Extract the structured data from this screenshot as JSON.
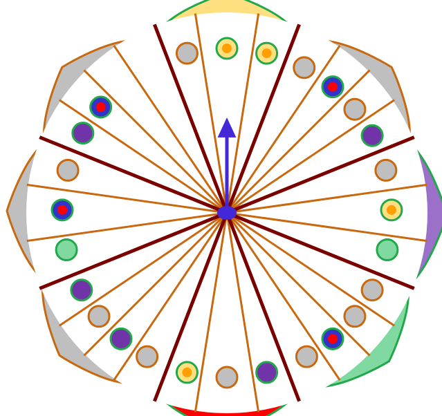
{
  "colors": {
    "background": "#ffffff",
    "rim_stroke": "#c8680f",
    "thin_spoke": "#c8680f",
    "thick_spoke": "#7a0000",
    "pointer": "#4427d6",
    "ring": "#22a84a",
    "grey_fill": "#bfbfbf",
    "green_fill": "#7fd9a0",
    "purple": "#7033a8",
    "red": "#ff0000",
    "yellow": "#ffdf80",
    "orange": "#ffa000",
    "blue": "#3333cc",
    "lavender": "#9a70c8"
  },
  "pointer": {
    "direction_degrees": 0,
    "icon": "arrow-up-icon"
  },
  "arcs": [
    {
      "id": "arc-top",
      "fill": "yellow",
      "outline": "ring"
    },
    {
      "id": "arc-upper-right",
      "fill": "grey",
      "outline": "rim"
    },
    {
      "id": "arc-right",
      "fill": "lavender",
      "outline": "ring"
    },
    {
      "id": "arc-lower-right",
      "fill": "green",
      "outline": "ring"
    },
    {
      "id": "arc-bottom",
      "fill": "red",
      "outline": "ring"
    },
    {
      "id": "arc-lower-left",
      "fill": "grey",
      "outline": "rim"
    },
    {
      "id": "arc-left",
      "fill": "grey",
      "outline": "rim"
    },
    {
      "id": "arc-upper-left",
      "fill": "grey",
      "outline": "rim"
    }
  ],
  "tokens": [
    {
      "id": "t1",
      "base": "ring",
      "fill": "yellow",
      "inner": "orange"
    },
    {
      "id": "t2",
      "base": "ring",
      "fill": "yellow",
      "inner": "orange"
    },
    {
      "id": "t3",
      "base": "rim",
      "fill": "grey",
      "inner": null
    },
    {
      "id": "t4",
      "base": "rim",
      "fill": "grey",
      "inner": null
    },
    {
      "id": "t5",
      "base": "ring",
      "fill": "blue",
      "inner": "red"
    },
    {
      "id": "t6",
      "base": "rim",
      "fill": "grey",
      "inner": null
    },
    {
      "id": "t7",
      "base": "ring",
      "fill": "purple",
      "inner": null
    },
    {
      "id": "t8",
      "base": "rim",
      "fill": "grey",
      "inner": null
    },
    {
      "id": "t9",
      "base": "ring",
      "fill": "yellow",
      "inner": "orange"
    },
    {
      "id": "t10",
      "base": "ring",
      "fill": "green",
      "inner": null
    },
    {
      "id": "t11",
      "base": "rim",
      "fill": "grey",
      "inner": null
    },
    {
      "id": "t12",
      "base": "rim",
      "fill": "grey",
      "inner": null
    },
    {
      "id": "t13",
      "base": "ring",
      "fill": "blue",
      "inner": "red"
    },
    {
      "id": "t14",
      "base": "rim",
      "fill": "grey",
      "inner": null
    },
    {
      "id": "t15",
      "base": "ring",
      "fill": "purple",
      "inner": null
    },
    {
      "id": "t16",
      "base": "rim",
      "fill": "grey",
      "inner": null
    },
    {
      "id": "t17",
      "base": "ring",
      "fill": "yellow",
      "inner": "orange"
    },
    {
      "id": "t18",
      "base": "rim",
      "fill": "grey",
      "inner": null
    },
    {
      "id": "t19",
      "base": "ring",
      "fill": "purple",
      "inner": null
    },
    {
      "id": "t20",
      "base": "rim",
      "fill": "grey",
      "inner": null
    },
    {
      "id": "t21",
      "base": "ring",
      "fill": "purple",
      "inner": null
    },
    {
      "id": "t22",
      "base": "ring",
      "fill": "green",
      "inner": null
    },
    {
      "id": "t23",
      "base": "ring",
      "fill": "blue",
      "inner": "red"
    },
    {
      "id": "t24",
      "base": "rim",
      "fill": "grey",
      "inner": null
    },
    {
      "id": "t25",
      "base": "ring",
      "fill": "purple",
      "inner": null
    },
    {
      "id": "t26",
      "base": "ring",
      "fill": "blue",
      "inner": "red"
    }
  ]
}
